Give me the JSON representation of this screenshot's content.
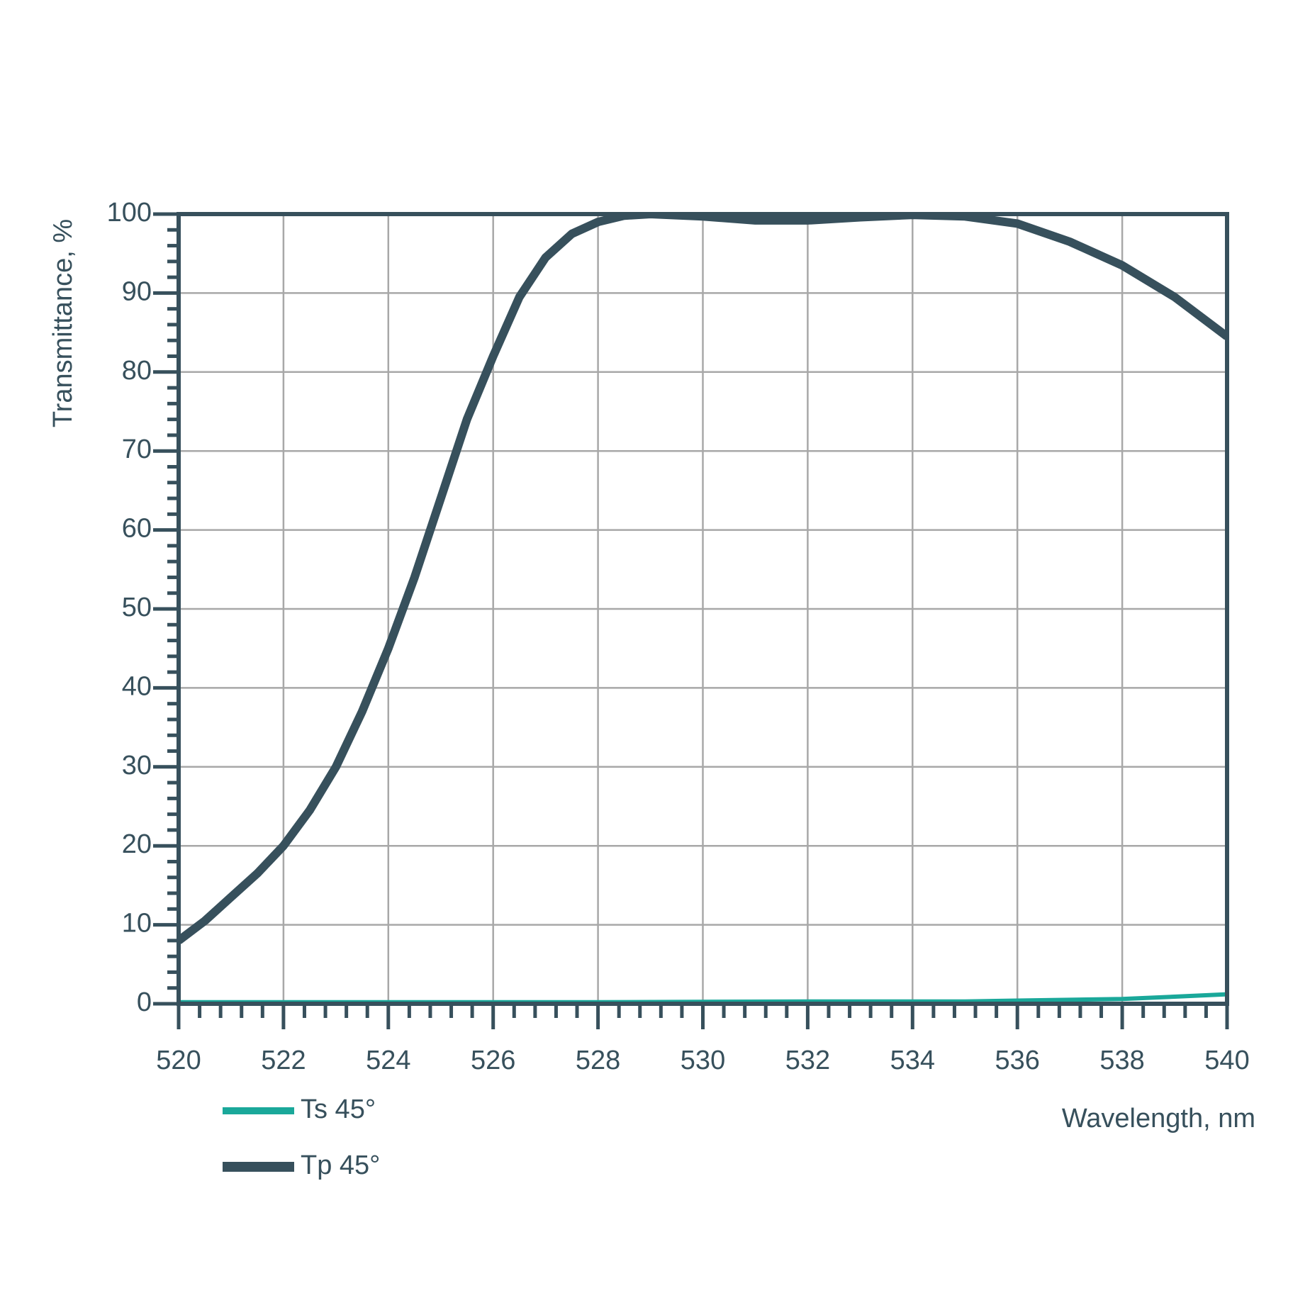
{
  "chart_data": {
    "type": "line",
    "x_label": "Wavelength, nm",
    "y_label": "Transmittance, %",
    "xlim": [
      520,
      540
    ],
    "xticks": [
      520,
      522,
      524,
      526,
      528,
      530,
      532,
      534,
      536,
      538,
      540
    ],
    "ylim": [
      0,
      100
    ],
    "yticks": [
      0,
      10,
      20,
      30,
      40,
      50,
      60,
      70,
      80,
      90,
      100
    ],
    "grid": true,
    "legend": "bottom-left",
    "series": [
      {
        "name": "Ts 45°",
        "color": "#1aa89a",
        "x": [
          520,
          524,
          528,
          532,
          535,
          536,
          537,
          538,
          539,
          540
        ],
        "values": [
          0.2,
          0.2,
          0.2,
          0.3,
          0.3,
          0.4,
          0.5,
          0.6,
          0.9,
          1.2
        ]
      },
      {
        "name": "Tp 45°",
        "color": "#37505c",
        "x": [
          520,
          520.5,
          521,
          521.5,
          522,
          522.5,
          523,
          523.5,
          524,
          524.5,
          525,
          525.5,
          526,
          526.5,
          527,
          527.5,
          528,
          528.5,
          529,
          530,
          531,
          532,
          533,
          534,
          535,
          536,
          537,
          538,
          539,
          540
        ],
        "values": [
          8,
          10.5,
          13.5,
          16.5,
          20,
          24.5,
          30,
          37,
          45,
          54,
          64,
          74,
          82,
          89.5,
          94.5,
          97.5,
          99,
          99.8,
          100,
          99.7,
          99.2,
          99.2,
          99.6,
          99.9,
          99.7,
          98.8,
          96.5,
          93.5,
          89.5,
          84.5
        ]
      }
    ]
  }
}
